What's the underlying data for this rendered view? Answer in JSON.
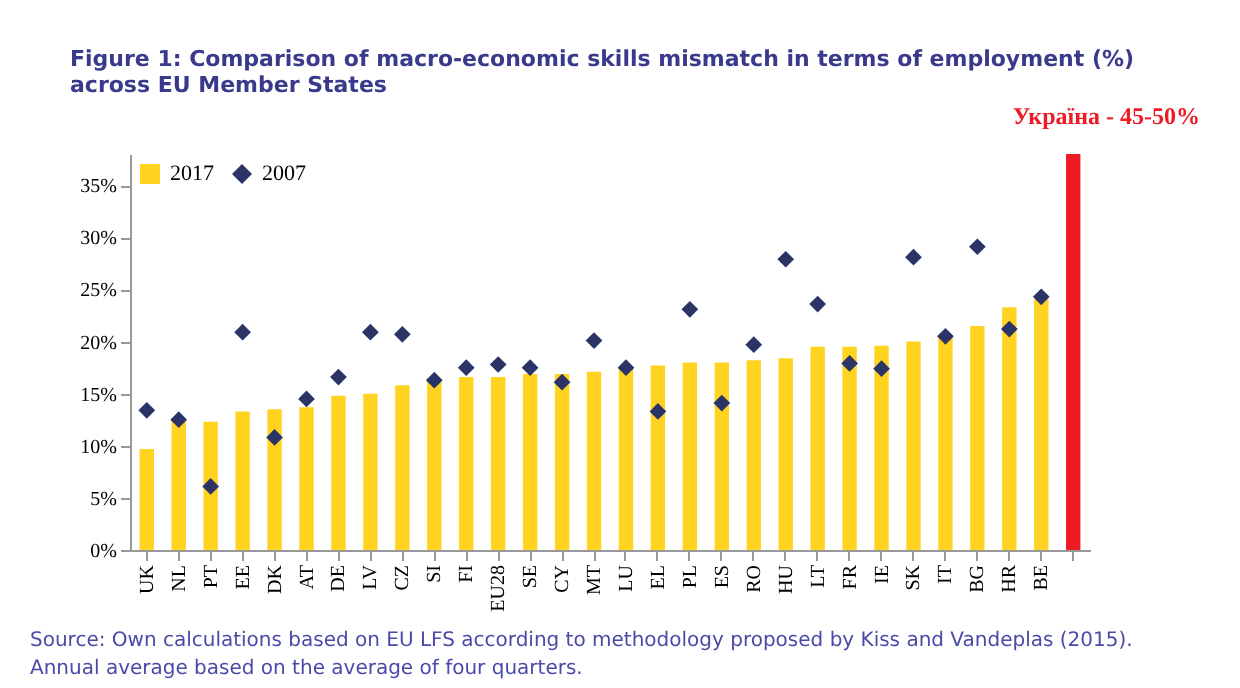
{
  "chart_data": {
    "type": "bar",
    "title": "Figure 1: Comparison of macro-economic skills mismatch in terms of employment (%) across EU Member States",
    "categories": [
      "UK",
      "NL",
      "PT",
      "EE",
      "DK",
      "AT",
      "DE",
      "LV",
      "CZ",
      "SI",
      "FI",
      "EU28",
      "SE",
      "CY",
      "MT",
      "LU",
      "EL",
      "PL",
      "ES",
      "RO",
      "HU",
      "LT",
      "FR",
      "IE",
      "SK",
      "IT",
      "BG",
      "HR",
      "BE",
      null
    ],
    "series": [
      {
        "name": "2017",
        "color": "#ffd320",
        "values": [
          9.7,
          12.5,
          12.3,
          13.3,
          13.5,
          13.7,
          14.8,
          15.0,
          15.8,
          16.2,
          16.6,
          16.6,
          16.9,
          16.9,
          17.1,
          17.4,
          17.7,
          18.0,
          18.0,
          18.2,
          18.4,
          19.5,
          19.5,
          19.6,
          20.0,
          20.5,
          21.5,
          23.3,
          24.1,
          null
        ]
      },
      {
        "name": "2007",
        "type": "scatter",
        "marker": "diamond",
        "color": "#2b3467",
        "values": [
          13.4,
          12.5,
          6.1,
          20.9,
          10.8,
          14.5,
          16.6,
          20.9,
          20.7,
          16.3,
          17.5,
          17.8,
          17.5,
          16.1,
          20.1,
          17.5,
          13.3,
          23.1,
          14.1,
          19.7,
          27.9,
          23.6,
          17.9,
          17.4,
          28.1,
          20.5,
          29.1,
          21.2,
          24.3,
          null
        ]
      },
      {
        "color": "#ed1c24",
        "values": [
          null,
          null,
          null,
          null,
          null,
          null,
          null,
          null,
          null,
          null,
          null,
          null,
          null,
          null,
          null,
          null,
          null,
          null,
          null,
          null,
          null,
          null,
          null,
          null,
          null,
          null,
          null,
          null,
          null,
          38
        ]
      }
    ],
    "ylim": [
      0,
      38
    ],
    "yticks": [
      {
        "value": 0,
        "label": "0%"
      },
      {
        "value": 5,
        "label": "5%"
      },
      {
        "value": 10,
        "label": "10%"
      },
      {
        "value": 15,
        "label": "15%"
      },
      {
        "value": 20,
        "label": "20%"
      },
      {
        "value": 25,
        "label": "25%"
      },
      {
        "value": 30,
        "label": "30%"
      },
      {
        "value": 35,
        "label": "35%"
      }
    ],
    "grid": false,
    "legend": "top left",
    "annotations": [
      "Україна - 45-50%",
      "Source: Own calculations based on EU LFS according to methodology proposed by Kiss and Vandeplas (2015). Annual average based on the average of four quarters."
    ]
  }
}
